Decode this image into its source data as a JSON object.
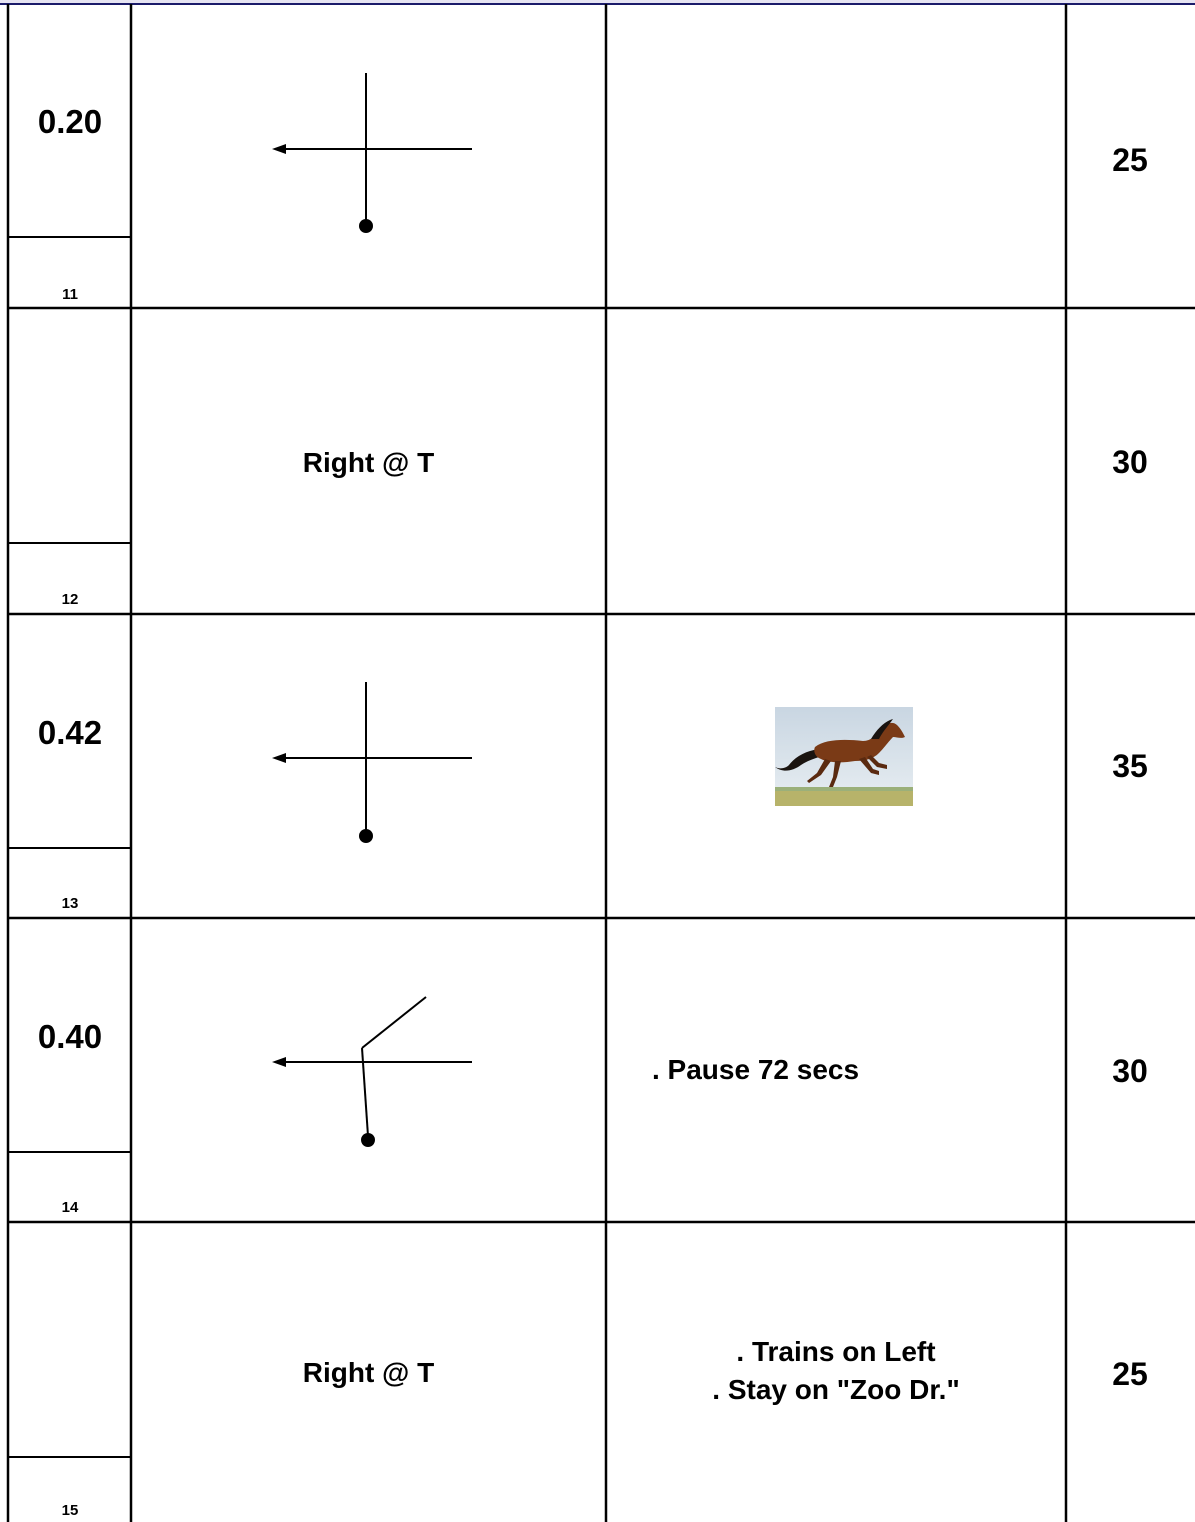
{
  "rows": [
    {
      "step": "11",
      "distance": "0.20",
      "turn_text": "",
      "diagram": "left-arrow-cross",
      "notes": [],
      "speed": "25"
    },
    {
      "step": "12",
      "distance": "",
      "turn_text": "Right @ T",
      "diagram": "",
      "notes": [],
      "speed": "30"
    },
    {
      "step": "13",
      "distance": "0.42",
      "turn_text": "",
      "diagram": "left-arrow-cross",
      "notes": [],
      "note_image": "running-horse-image",
      "speed": "35"
    },
    {
      "step": "14",
      "distance": "0.40",
      "turn_text": "",
      "diagram": "left-arrow-angled-fork",
      "notes": [
        ". Pause 72 secs"
      ],
      "speed": "30"
    },
    {
      "step": "15",
      "distance": "",
      "turn_text": "Right @ T",
      "diagram": "",
      "notes": [
        ". Trains on Left",
        ". Stay on \"Zoo Dr.\""
      ],
      "speed": "25"
    }
  ]
}
